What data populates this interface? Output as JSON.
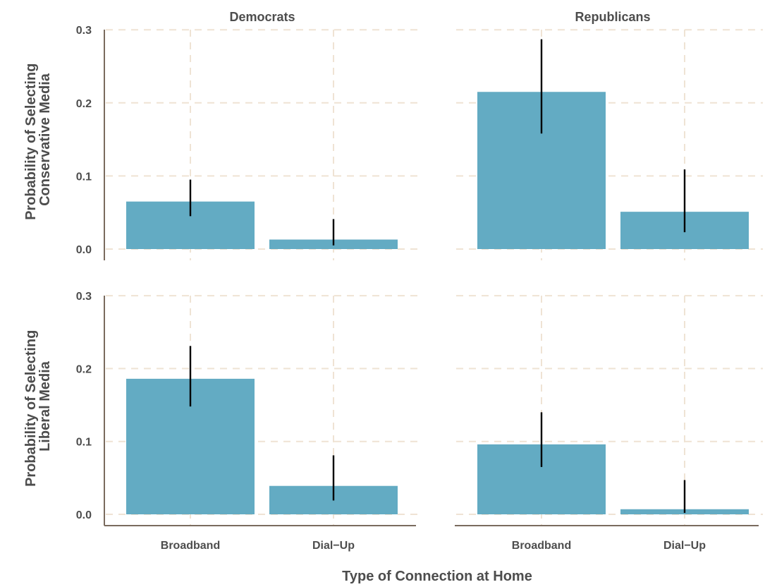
{
  "chart_data": {
    "type": "bar",
    "xlabel": "Type of Connection at Home",
    "categories": [
      "Broadband",
      "Dial−Up"
    ],
    "columns": [
      "Democrats",
      "Republicans"
    ],
    "ylim": [
      0,
      0.3
    ],
    "yticks": [
      "0.0",
      "0.1",
      "0.2",
      "0.3"
    ],
    "grid": true,
    "rows": [
      {
        "ylabel_lines": [
          "Probability of Selecting",
          "Conservative Media"
        ],
        "panels": [
          {
            "group": "Democrats",
            "values": [
              0.065,
              0.013
            ],
            "ci_low": [
              0.045,
              0.005
            ],
            "ci_high": [
              0.095,
              0.041
            ]
          },
          {
            "group": "Republicans",
            "values": [
              0.215,
              0.051
            ],
            "ci_low": [
              0.158,
              0.023
            ],
            "ci_high": [
              0.287,
              0.109
            ]
          }
        ]
      },
      {
        "ylabel_lines": [
          "Probability of Selecting",
          "Liberal Media"
        ],
        "panels": [
          {
            "group": "Democrats",
            "values": [
              0.186,
              0.039
            ],
            "ci_low": [
              0.148,
              0.019
            ],
            "ci_high": [
              0.231,
              0.081
            ]
          },
          {
            "group": "Republicans",
            "values": [
              0.096,
              0.007
            ],
            "ci_low": [
              0.065,
              0.002
            ],
            "ci_high": [
              0.14,
              0.047
            ]
          }
        ]
      }
    ],
    "colors": {
      "bar": "#63abc3",
      "grid": "#efe3d4",
      "axis": "#7a6b5e",
      "errorbar": "#000000",
      "text": "#4d4d4d"
    }
  }
}
